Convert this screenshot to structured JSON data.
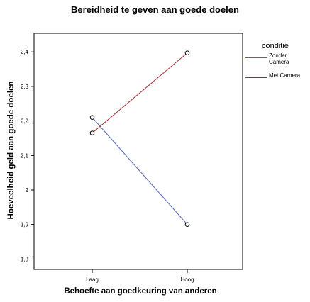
{
  "chart_data": {
    "type": "line",
    "title": "Bereidheid te geven aan goede doelen",
    "xlabel": "Behoefte aan goedkeuring van anderen",
    "ylabel": "Hoeveelheid geld aan goede doelen",
    "categories": [
      "Laag",
      "Hoog"
    ],
    "ylim": [
      1.77,
      2.45
    ],
    "yticks": [
      "1,8",
      "1,9",
      "2",
      "2,1",
      "2,2",
      "2,3",
      "2,4"
    ],
    "grid": false,
    "legend_title": "conditie",
    "legend_position": "right",
    "series": [
      {
        "name": "Zonder Camera",
        "values": [
          2.21,
          1.9
        ],
        "color": "#4a62b5"
      },
      {
        "name": "Met Camera",
        "values": [
          2.165,
          2.397
        ],
        "color": "#a52a2a"
      }
    ]
  }
}
